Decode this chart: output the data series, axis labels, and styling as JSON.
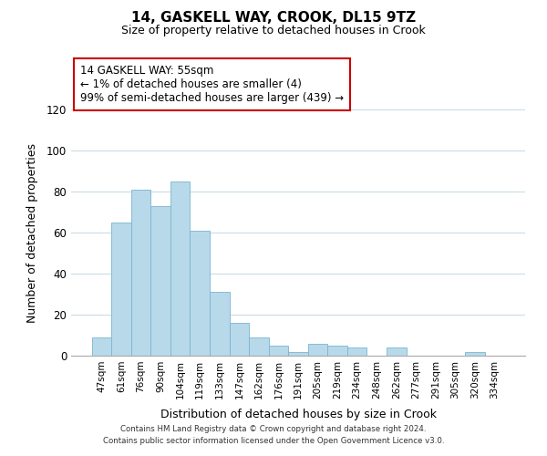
{
  "title": "14, GASKELL WAY, CROOK, DL15 9TZ",
  "subtitle": "Size of property relative to detached houses in Crook",
  "xlabel": "Distribution of detached houses by size in Crook",
  "ylabel": "Number of detached properties",
  "categories": [
    "47sqm",
    "61sqm",
    "76sqm",
    "90sqm",
    "104sqm",
    "119sqm",
    "133sqm",
    "147sqm",
    "162sqm",
    "176sqm",
    "191sqm",
    "205sqm",
    "219sqm",
    "234sqm",
    "248sqm",
    "262sqm",
    "277sqm",
    "291sqm",
    "305sqm",
    "320sqm",
    "334sqm"
  ],
  "values": [
    9,
    65,
    81,
    73,
    85,
    61,
    31,
    16,
    9,
    5,
    2,
    6,
    5,
    4,
    0,
    4,
    0,
    0,
    0,
    2,
    0
  ],
  "bar_color": "#b8d9ea",
  "bar_edge_color": "#7ab5d0",
  "ylim": [
    0,
    120
  ],
  "yticks": [
    0,
    20,
    40,
    60,
    80,
    100,
    120
  ],
  "annotation_title": "14 GASKELL WAY: 55sqm",
  "annotation_line1": "← 1% of detached houses are smaller (4)",
  "annotation_line2": "99% of semi-detached houses are larger (439) →",
  "annotation_box_color": "#ffffff",
  "annotation_box_edge": "#cc0000",
  "footer_line1": "Contains HM Land Registry data © Crown copyright and database right 2024.",
  "footer_line2": "Contains public sector information licensed under the Open Government Licence v3.0.",
  "background_color": "#ffffff",
  "grid_color": "#c8dce8"
}
